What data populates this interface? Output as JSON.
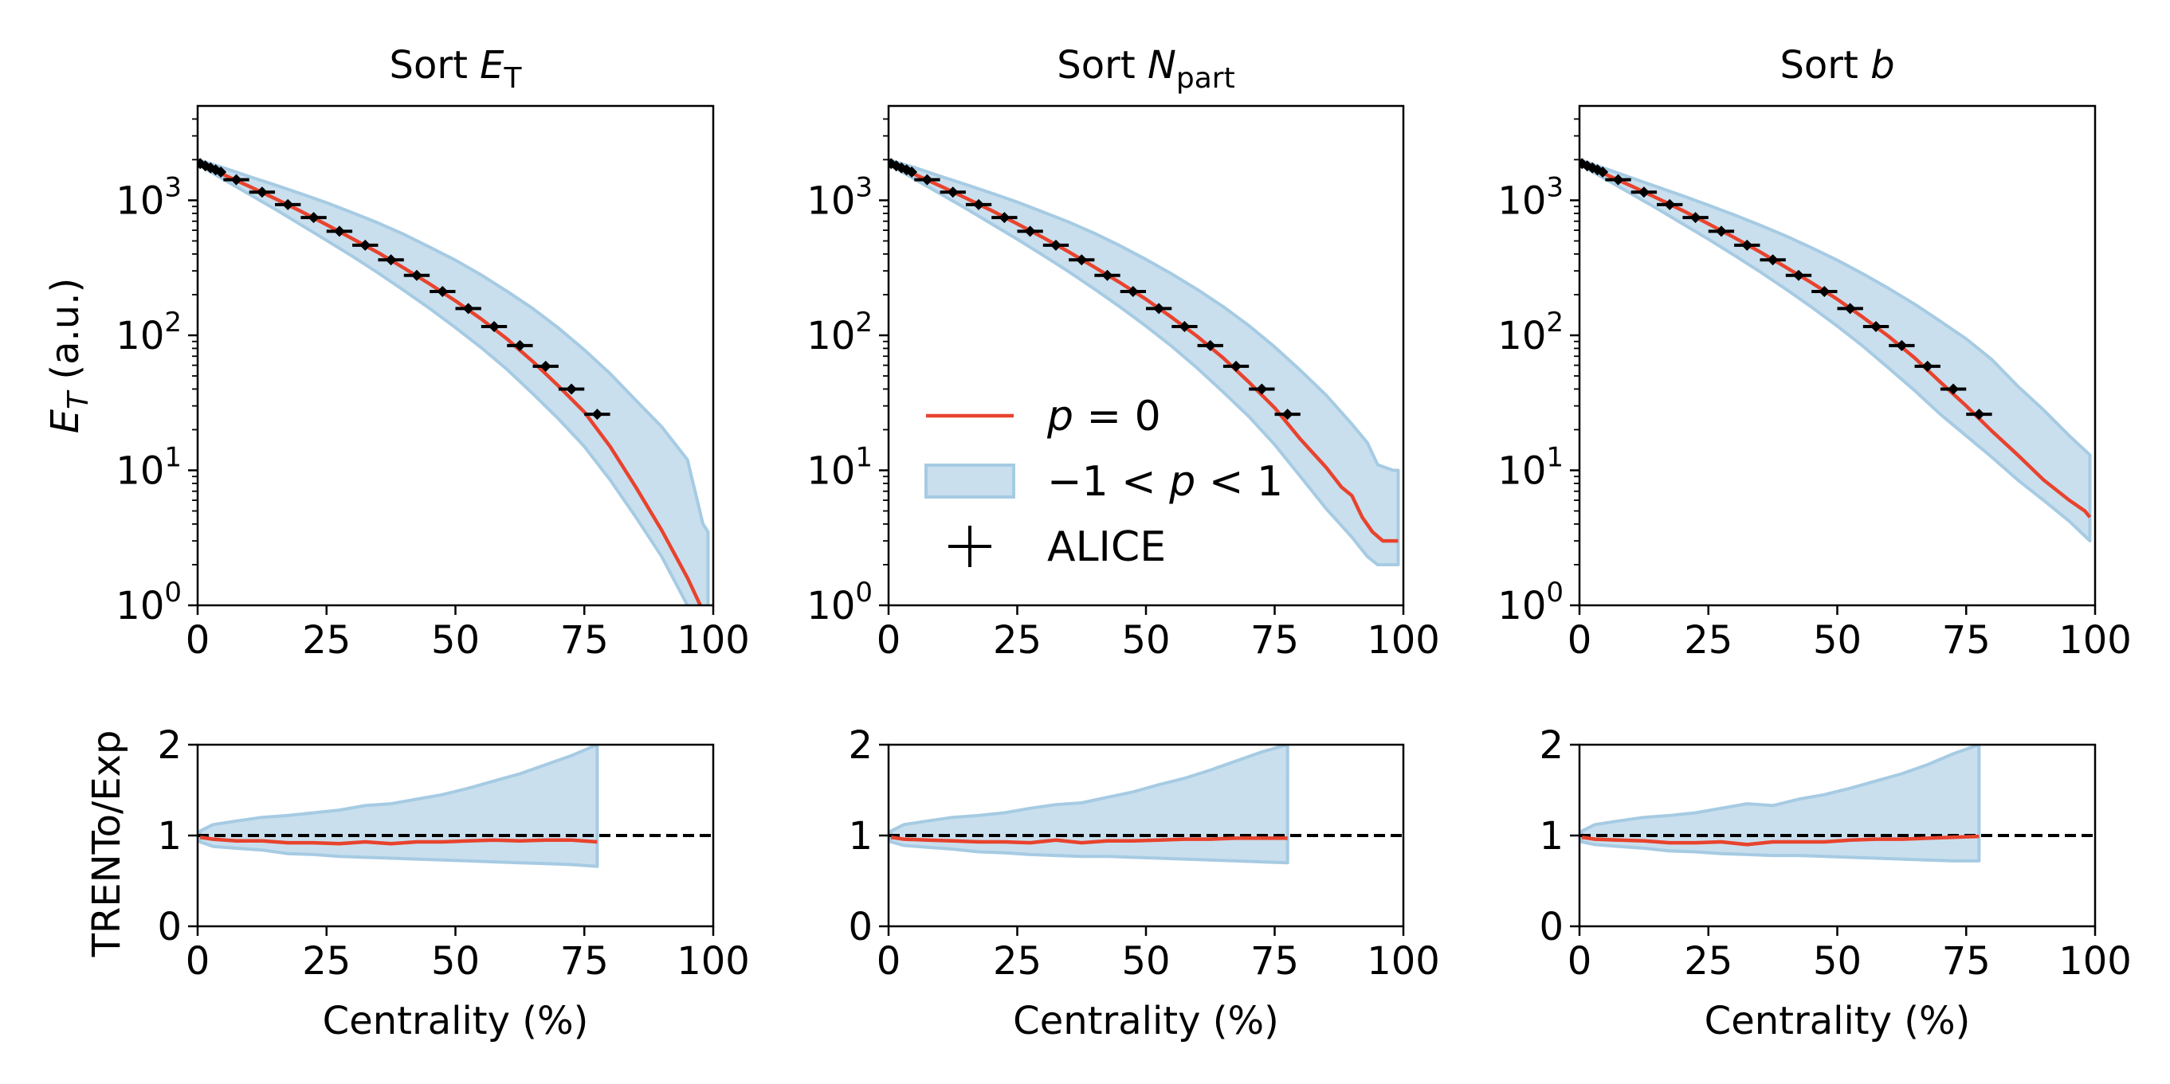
{
  "colors": {
    "model_line": "#e8432e",
    "band_fill": "#c9dfee",
    "band_edge": "#a6cbe3",
    "data_marker": "#000000",
    "reference_line": "#000000"
  },
  "chart_data": [
    {
      "type": "line",
      "title": "Sort E_T",
      "title_parts": {
        "prefix": "Sort ",
        "symbol": "E",
        "subscript": "T"
      },
      "ylabel": "E_T (a.u.)",
      "ylabel_parts": {
        "symbol": "E",
        "subscript": "T",
        "suffix": " (a.u.)"
      },
      "xlabel": "",
      "xlim": [
        0,
        100
      ],
      "ylim": [
        1,
        5000
      ],
      "yscale": "log",
      "xticks": [
        "0",
        "25",
        "50",
        "75",
        "100"
      ],
      "yticks": [
        {
          "base": "10",
          "exp": "0",
          "value": 1
        },
        {
          "base": "10",
          "exp": "1",
          "value": 10
        },
        {
          "base": "10",
          "exp": "2",
          "value": 100
        },
        {
          "base": "10",
          "exp": "3",
          "value": 1000
        }
      ],
      "series": [
        {
          "kind": "line",
          "x": [
            0,
            5,
            10,
            15,
            20,
            25,
            30,
            35,
            40,
            45,
            50,
            55,
            60,
            65,
            70,
            75,
            80,
            85,
            90,
            95,
            97.5
          ],
          "y": [
            1900,
            1550,
            1270,
            1030,
            830,
            660,
            520,
            410,
            315,
            240,
            180,
            132,
            94,
            64,
            42,
            27,
            15,
            7.5,
            3.6,
            1.6,
            1.0
          ]
        },
        {
          "kind": "band",
          "x": [
            0,
            5,
            10,
            15,
            20,
            25,
            30,
            35,
            40,
            45,
            50,
            55,
            60,
            65,
            70,
            75,
            80,
            85,
            90,
            95,
            98,
            99
          ],
          "upper": [
            2000,
            1740,
            1500,
            1300,
            1120,
            960,
            810,
            680,
            560,
            450,
            360,
            280,
            212,
            158,
            113,
            78,
            52,
            33,
            21,
            12,
            4,
            3.5
          ],
          "lower": [
            1850,
            1430,
            1110,
            860,
            660,
            505,
            385,
            290,
            215,
            158,
            114,
            81,
            56,
            37,
            24,
            15,
            8.5,
            4.5,
            2.3,
            1.0,
            0.9,
            0.9
          ]
        }
      ],
      "alice": {
        "x": [
          0.5,
          1.5,
          2.5,
          3.5,
          4.5,
          7.5,
          12.5,
          17.5,
          22.5,
          27.5,
          32.5,
          37.5,
          42.5,
          47.5,
          52.5,
          57.5,
          62.5,
          67.5,
          72.5,
          77.5
        ],
        "xerr": [
          0.5,
          0.5,
          0.5,
          0.5,
          0.5,
          2.5,
          2.5,
          2.5,
          2.5,
          2.5,
          2.5,
          2.5,
          2.5,
          2.5,
          2.5,
          2.5,
          2.5,
          2.5,
          2.5,
          2.5
        ],
        "y": [
          1870,
          1800,
          1740,
          1680,
          1620,
          1420,
          1150,
          930,
          745,
          590,
          465,
          362,
          278,
          211,
          158,
          116,
          84,
          59,
          40,
          26
        ]
      }
    },
    {
      "type": "line",
      "title": "Sort N_part",
      "title_parts": {
        "prefix": "Sort ",
        "symbol": "N",
        "subscript": "part"
      },
      "ylabel": "",
      "xlabel": "",
      "xlim": [
        0,
        100
      ],
      "ylim": [
        1,
        5000
      ],
      "yscale": "log",
      "xticks": [
        "0",
        "25",
        "50",
        "75",
        "100"
      ],
      "yticks": [
        {
          "base": "10",
          "exp": "0",
          "value": 1
        },
        {
          "base": "10",
          "exp": "1",
          "value": 10
        },
        {
          "base": "10",
          "exp": "2",
          "value": 100
        },
        {
          "base": "10",
          "exp": "3",
          "value": 1000
        }
      ],
      "series": [
        {
          "kind": "line",
          "x": [
            0,
            5,
            10,
            15,
            20,
            25,
            30,
            35,
            40,
            45,
            50,
            55,
            60,
            65,
            70,
            75,
            80,
            85,
            88,
            90,
            92,
            94,
            96,
            98,
            99
          ],
          "y": [
            1900,
            1560,
            1280,
            1040,
            840,
            670,
            530,
            415,
            320,
            245,
            185,
            136,
            98,
            68,
            45,
            29,
            17,
            10.5,
            7.5,
            6.5,
            4.5,
            3.5,
            3.0,
            3.0,
            3.0
          ]
        },
        {
          "kind": "band",
          "x": [
            0,
            5,
            10,
            15,
            20,
            25,
            30,
            35,
            40,
            45,
            50,
            55,
            60,
            65,
            70,
            75,
            80,
            85,
            90,
            93,
            95,
            98,
            99
          ],
          "upper": [
            2000,
            1750,
            1510,
            1310,
            1130,
            970,
            820,
            690,
            570,
            460,
            365,
            285,
            218,
            163,
            118,
            82,
            55,
            36,
            22,
            16,
            11,
            10,
            10
          ],
          "lower": [
            1850,
            1440,
            1120,
            870,
            670,
            515,
            392,
            296,
            220,
            162,
            117,
            83,
            57,
            38,
            25,
            15.5,
            9,
            5.2,
            3.2,
            2.3,
            2.0,
            2.0,
            2.0
          ]
        }
      ],
      "alice": {
        "x": [
          0.5,
          1.5,
          2.5,
          3.5,
          4.5,
          7.5,
          12.5,
          17.5,
          22.5,
          27.5,
          32.5,
          37.5,
          42.5,
          47.5,
          52.5,
          57.5,
          62.5,
          67.5,
          72.5,
          77.5
        ],
        "xerr": [
          0.5,
          0.5,
          0.5,
          0.5,
          0.5,
          2.5,
          2.5,
          2.5,
          2.5,
          2.5,
          2.5,
          2.5,
          2.5,
          2.5,
          2.5,
          2.5,
          2.5,
          2.5,
          2.5,
          2.5
        ],
        "y": [
          1870,
          1800,
          1740,
          1680,
          1620,
          1420,
          1150,
          930,
          745,
          590,
          465,
          362,
          278,
          211,
          158,
          116,
          84,
          59,
          40,
          26
        ]
      },
      "legend": {
        "placement": "center-left",
        "entries": [
          {
            "kind": "line",
            "label": "p = 0",
            "label_parts": {
              "symbol": "p",
              "rest": " = 0"
            }
          },
          {
            "kind": "band",
            "label": "−1 < p < 1",
            "label_parts": {
              "lead": "−1 < ",
              "symbol": "p",
              "rest": " < 1"
            }
          },
          {
            "kind": "errorbar",
            "label": "ALICE"
          }
        ]
      }
    },
    {
      "type": "line",
      "title": "Sort b",
      "title_parts": {
        "prefix": "Sort ",
        "symbol": "b",
        "subscript": ""
      },
      "ylabel": "",
      "xlabel": "",
      "xlim": [
        0,
        100
      ],
      "ylim": [
        1,
        5000
      ],
      "yscale": "log",
      "xticks": [
        "0",
        "25",
        "50",
        "75",
        "100"
      ],
      "yticks": [
        {
          "base": "10",
          "exp": "0",
          "value": 1
        },
        {
          "base": "10",
          "exp": "1",
          "value": 10
        },
        {
          "base": "10",
          "exp": "2",
          "value": 100
        },
        {
          "base": "10",
          "exp": "3",
          "value": 1000
        }
      ],
      "series": [
        {
          "kind": "line",
          "x": [
            0,
            5,
            10,
            15,
            20,
            25,
            30,
            35,
            40,
            45,
            50,
            55,
            60,
            65,
            70,
            75,
            80,
            85,
            90,
            95,
            98,
            99
          ],
          "y": [
            1900,
            1560,
            1280,
            1040,
            840,
            670,
            530,
            415,
            320,
            245,
            185,
            136,
            98,
            68,
            45,
            30,
            19.5,
            13,
            8.5,
            6,
            5,
            4.5
          ]
        },
        {
          "kind": "band",
          "x": [
            0,
            5,
            10,
            15,
            20,
            25,
            30,
            35,
            40,
            45,
            50,
            55,
            60,
            65,
            70,
            75,
            80,
            85,
            90,
            95,
            99
          ],
          "upper": [
            2000,
            1720,
            1470,
            1260,
            1080,
            920,
            780,
            655,
            545,
            445,
            360,
            285,
            222,
            170,
            127,
            94,
            66,
            42,
            28,
            18,
            13
          ],
          "lower": [
            1850,
            1440,
            1120,
            870,
            670,
            515,
            392,
            296,
            220,
            162,
            117,
            83,
            57,
            39,
            26,
            18,
            12.5,
            8.5,
            6,
            4.2,
            3.0
          ]
        }
      ],
      "alice": {
        "x": [
          0.5,
          1.5,
          2.5,
          3.5,
          4.5,
          7.5,
          12.5,
          17.5,
          22.5,
          27.5,
          32.5,
          37.5,
          42.5,
          47.5,
          52.5,
          57.5,
          62.5,
          67.5,
          72.5,
          77.5
        ],
        "xerr": [
          0.5,
          0.5,
          0.5,
          0.5,
          0.5,
          2.5,
          2.5,
          2.5,
          2.5,
          2.5,
          2.5,
          2.5,
          2.5,
          2.5,
          2.5,
          2.5,
          2.5,
          2.5,
          2.5,
          2.5
        ],
        "y": [
          1870,
          1800,
          1740,
          1680,
          1620,
          1420,
          1150,
          930,
          745,
          590,
          465,
          362,
          278,
          211,
          158,
          116,
          84,
          59,
          40,
          26
        ]
      }
    },
    {
      "type": "line",
      "title": "",
      "ylabel": "TRENTo/Exp",
      "xlabel": "Centrality (%)",
      "xlim": [
        0,
        100
      ],
      "ylim": [
        0,
        2
      ],
      "yscale": "linear",
      "xticks": [
        "0",
        "25",
        "50",
        "75",
        "100"
      ],
      "yticks": [
        "0",
        "1",
        "2"
      ],
      "reference_line": 1,
      "series": [
        {
          "kind": "line",
          "x": [
            0.5,
            3,
            7.5,
            12.5,
            17.5,
            22.5,
            27.5,
            32.5,
            37.5,
            42.5,
            47.5,
            52.5,
            57.5,
            62.5,
            67.5,
            72.5,
            77.5
          ],
          "y": [
            0.98,
            0.96,
            0.94,
            0.94,
            0.92,
            0.92,
            0.91,
            0.93,
            0.91,
            0.93,
            0.93,
            0.94,
            0.95,
            0.94,
            0.95,
            0.95,
            0.93
          ]
        },
        {
          "kind": "band",
          "x": [
            0.5,
            3,
            7.5,
            12.5,
            17.5,
            22.5,
            27.5,
            32.5,
            37.5,
            42.5,
            47.5,
            52.5,
            57.5,
            62.5,
            67.5,
            72.5,
            77.5
          ],
          "upper": [
            1.05,
            1.12,
            1.16,
            1.2,
            1.22,
            1.25,
            1.28,
            1.33,
            1.35,
            1.4,
            1.45,
            1.52,
            1.6,
            1.68,
            1.78,
            1.88,
            2.0
          ],
          "lower": [
            0.93,
            0.88,
            0.86,
            0.84,
            0.8,
            0.79,
            0.77,
            0.76,
            0.75,
            0.74,
            0.73,
            0.72,
            0.71,
            0.7,
            0.69,
            0.68,
            0.66
          ]
        }
      ]
    },
    {
      "type": "line",
      "title": "",
      "ylabel": "",
      "xlabel": "Centrality (%)",
      "xlim": [
        0,
        100
      ],
      "ylim": [
        0,
        2
      ],
      "yscale": "linear",
      "xticks": [
        "0",
        "25",
        "50",
        "75",
        "100"
      ],
      "yticks": [
        "0",
        "1",
        "2"
      ],
      "reference_line": 1,
      "series": [
        {
          "kind": "line",
          "x": [
            0.5,
            3,
            7.5,
            12.5,
            17.5,
            22.5,
            27.5,
            32.5,
            37.5,
            42.5,
            47.5,
            52.5,
            57.5,
            62.5,
            67.5,
            72.5,
            77.5
          ],
          "y": [
            0.98,
            0.96,
            0.95,
            0.94,
            0.93,
            0.93,
            0.92,
            0.95,
            0.92,
            0.94,
            0.94,
            0.95,
            0.96,
            0.96,
            0.97,
            0.97,
            0.97
          ]
        },
        {
          "kind": "band",
          "x": [
            0.5,
            3,
            7.5,
            12.5,
            17.5,
            22.5,
            27.5,
            32.5,
            37.5,
            42.5,
            47.5,
            52.5,
            57.5,
            62.5,
            67.5,
            72.5,
            77.5
          ],
          "upper": [
            1.05,
            1.12,
            1.16,
            1.2,
            1.22,
            1.25,
            1.3,
            1.34,
            1.36,
            1.42,
            1.48,
            1.56,
            1.63,
            1.72,
            1.82,
            1.92,
            2.0
          ],
          "lower": [
            0.93,
            0.89,
            0.87,
            0.85,
            0.82,
            0.81,
            0.79,
            0.78,
            0.77,
            0.77,
            0.76,
            0.75,
            0.74,
            0.73,
            0.72,
            0.71,
            0.7
          ]
        }
      ]
    },
    {
      "type": "line",
      "title": "",
      "ylabel": "",
      "xlabel": "Centrality (%)",
      "xlim": [
        0,
        100
      ],
      "ylim": [
        0,
        2
      ],
      "yscale": "linear",
      "xticks": [
        "0",
        "25",
        "50",
        "75",
        "100"
      ],
      "yticks": [
        "0",
        "1",
        "2"
      ],
      "reference_line": 1,
      "series": [
        {
          "kind": "line",
          "x": [
            0.5,
            3,
            7.5,
            12.5,
            17.5,
            22.5,
            27.5,
            32.5,
            37.5,
            42.5,
            47.5,
            52.5,
            57.5,
            62.5,
            67.5,
            72.5,
            77.5
          ],
          "y": [
            0.98,
            0.96,
            0.95,
            0.94,
            0.92,
            0.92,
            0.93,
            0.9,
            0.93,
            0.93,
            0.93,
            0.95,
            0.96,
            0.96,
            0.97,
            0.98,
            0.99
          ]
        },
        {
          "kind": "band",
          "x": [
            0.5,
            3,
            7.5,
            12.5,
            17.5,
            22.5,
            27.5,
            32.5,
            37.5,
            42.5,
            47.5,
            52.5,
            57.5,
            62.5,
            67.5,
            72.5,
            77.5
          ],
          "upper": [
            1.05,
            1.12,
            1.16,
            1.2,
            1.22,
            1.25,
            1.3,
            1.35,
            1.33,
            1.4,
            1.45,
            1.52,
            1.6,
            1.68,
            1.78,
            1.9,
            2.0
          ],
          "lower": [
            0.93,
            0.9,
            0.88,
            0.86,
            0.83,
            0.82,
            0.8,
            0.79,
            0.78,
            0.78,
            0.77,
            0.76,
            0.75,
            0.74,
            0.73,
            0.72,
            0.72
          ]
        }
      ]
    }
  ]
}
